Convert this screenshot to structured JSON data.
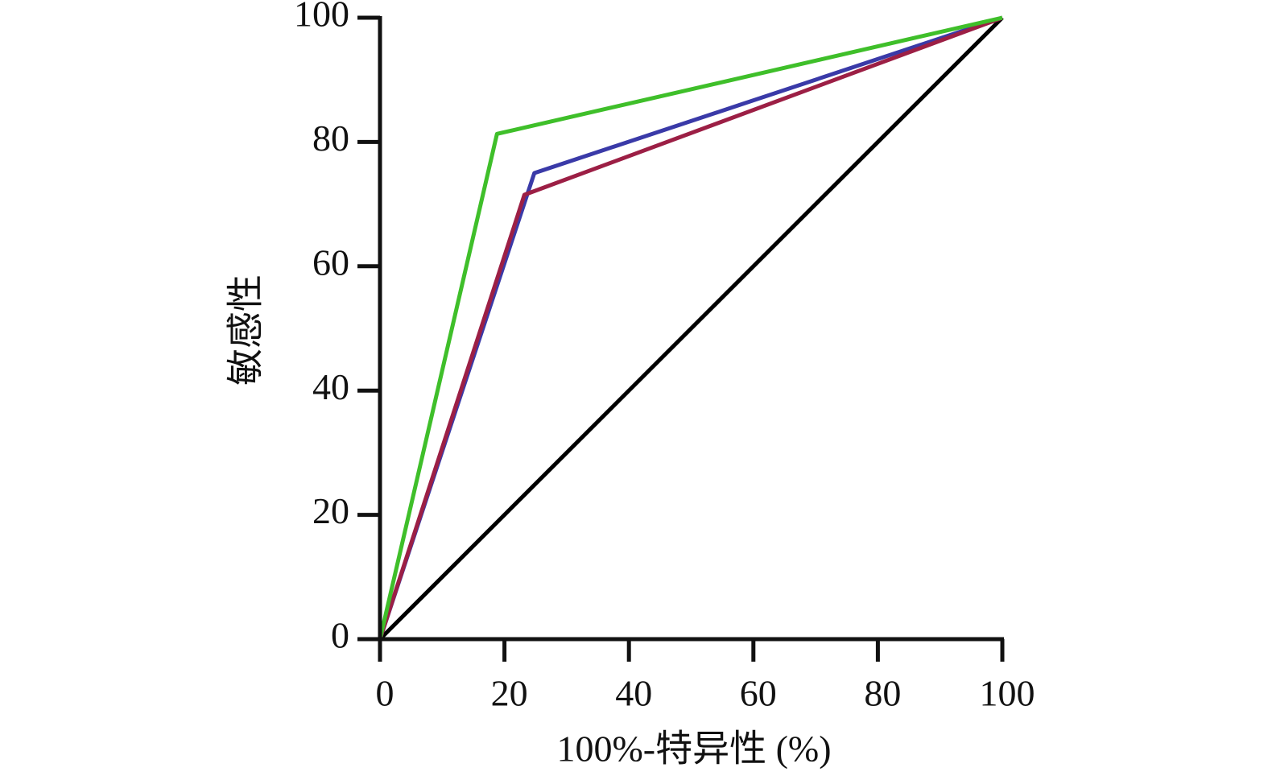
{
  "chart_data": {
    "type": "line",
    "xlabel": "100%-特异性 (%)",
    "ylabel": "敏感性",
    "xlim": [
      0,
      100
    ],
    "ylim": [
      0,
      100
    ],
    "xticks": [
      0,
      20,
      40,
      60,
      80,
      100
    ],
    "yticks": [
      0,
      20,
      40,
      60,
      80,
      100
    ],
    "grid": false,
    "series": [
      {
        "color": "#000000",
        "x": [
          0,
          100
        ],
        "values": [
          0,
          100
        ]
      },
      {
        "color": "#3a3aa8",
        "x": [
          0,
          24.8,
          100
        ],
        "values": [
          0,
          75,
          100
        ]
      },
      {
        "color": "#9c1f45",
        "x": [
          0,
          23.2,
          100
        ],
        "values": [
          0,
          71.5,
          100
        ]
      },
      {
        "color": "#3fbf2a",
        "x": [
          0,
          18.8,
          100
        ],
        "values": [
          0,
          81.3,
          100
        ]
      }
    ]
  }
}
